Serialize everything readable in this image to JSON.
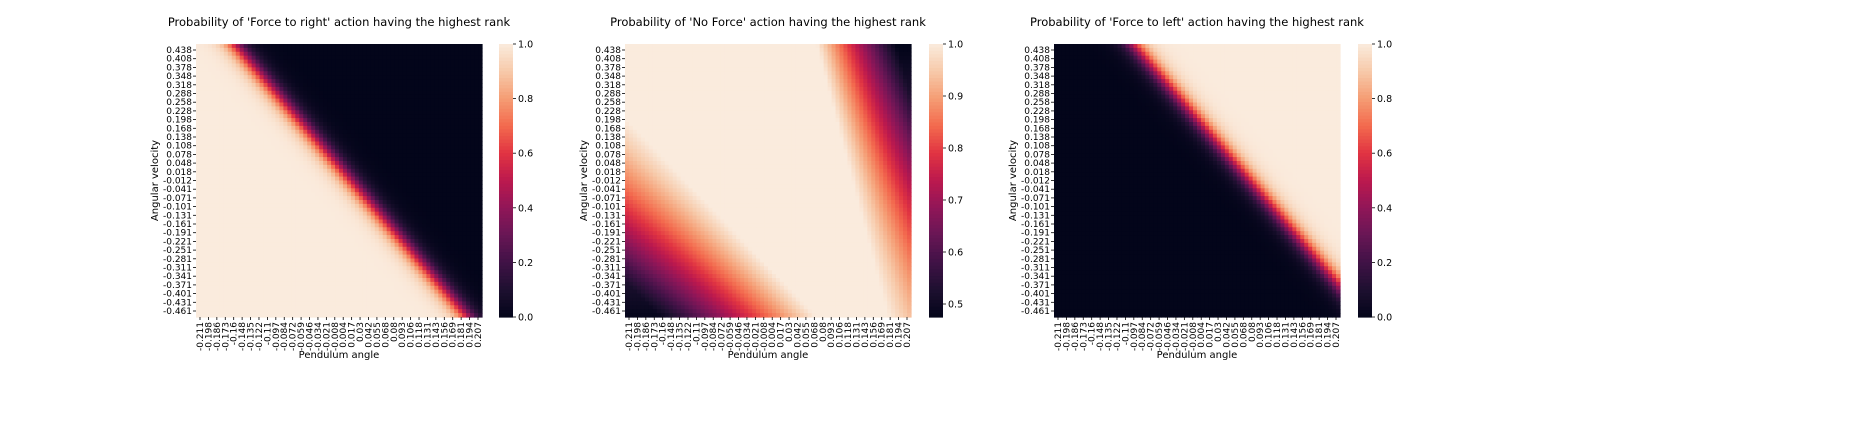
{
  "chart_data": [
    {
      "type": "heatmap",
      "title": "Probability of 'Force to right' action having the highest rank",
      "xlabel": "Pendulum angle",
      "ylabel": "Angular velocity",
      "x_ticks": [
        "-0.211",
        "-0.198",
        "-0.186",
        "-0.173",
        "-0.16",
        "-0.148",
        "-0.135",
        "-0.122",
        "-0.11",
        "-0.097",
        "-0.084",
        "-0.072",
        "-0.059",
        "-0.046",
        "-0.034",
        "-0.021",
        "-0.008",
        "0.004",
        "0.017",
        "0.03",
        "0.042",
        "0.055",
        "0.068",
        "0.08",
        "0.093",
        "0.106",
        "0.118",
        "0.131",
        "0.143",
        "0.156",
        "0.169",
        "0.181",
        "0.194",
        "0.207"
      ],
      "y_ticks": [
        "0.438",
        "0.408",
        "0.378",
        "0.348",
        "0.318",
        "0.288",
        "0.258",
        "0.228",
        "0.198",
        "0.168",
        "0.138",
        "0.108",
        "0.078",
        "0.048",
        "0.018",
        "-0.012",
        "-0.041",
        "-0.071",
        "-0.101",
        "-0.131",
        "-0.161",
        "-0.191",
        "-0.221",
        "-0.251",
        "-0.281",
        "-0.311",
        "-0.341",
        "-0.371",
        "-0.401",
        "-0.431",
        "-0.461"
      ],
      "colorbar": {
        "min": 0.0,
        "max": 1.0,
        "ticks": [
          "0.0",
          "0.2",
          "0.4",
          "0.6",
          "0.8",
          "1.0"
        ],
        "tick_values": [
          0.0,
          0.2,
          0.4,
          0.6,
          0.8,
          1.0
        ]
      },
      "pattern": "right",
      "colormap": "rocket",
      "grid": false
    },
    {
      "type": "heatmap",
      "title": "Probability of 'No Force' action having the highest rank",
      "xlabel": "Pendulum angle",
      "ylabel": "Angular velocity",
      "x_ticks": [
        "-0.211",
        "-0.198",
        "-0.186",
        "-0.173",
        "-0.16",
        "-0.148",
        "-0.135",
        "-0.122",
        "-0.11",
        "-0.097",
        "-0.084",
        "-0.072",
        "-0.059",
        "-0.046",
        "-0.034",
        "-0.021",
        "-0.008",
        "0.004",
        "0.017",
        "0.03",
        "0.042",
        "0.055",
        "0.068",
        "0.08",
        "0.093",
        "0.106",
        "0.118",
        "0.131",
        "0.143",
        "0.156",
        "0.169",
        "0.181",
        "0.194",
        "0.207"
      ],
      "y_ticks": [
        "0.438",
        "0.408",
        "0.378",
        "0.348",
        "0.318",
        "0.288",
        "0.258",
        "0.228",
        "0.198",
        "0.168",
        "0.138",
        "0.108",
        "0.078",
        "0.048",
        "0.018",
        "-0.012",
        "-0.041",
        "-0.071",
        "-0.101",
        "-0.131",
        "-0.161",
        "-0.191",
        "-0.221",
        "-0.251",
        "-0.281",
        "-0.311",
        "-0.341",
        "-0.371",
        "-0.401",
        "-0.431",
        "-0.461"
      ],
      "colorbar": {
        "min": 0.475,
        "max": 1.0,
        "ticks": [
          "0.5",
          "0.6",
          "0.7",
          "0.8",
          "0.9",
          "1.0"
        ],
        "tick_values": [
          0.5,
          0.6,
          0.7,
          0.8,
          0.9,
          1.0
        ]
      },
      "pattern": "none",
      "colormap": "rocket",
      "grid": false
    },
    {
      "type": "heatmap",
      "title": "Probability of 'Force to left' action having the highest rank",
      "xlabel": "Pendulum angle",
      "ylabel": "Angular velocity",
      "x_ticks": [
        "-0.211",
        "-0.198",
        "-0.186",
        "-0.173",
        "-0.16",
        "-0.148",
        "-0.135",
        "-0.122",
        "-0.11",
        "-0.097",
        "-0.084",
        "-0.072",
        "-0.059",
        "-0.046",
        "-0.034",
        "-0.021",
        "-0.008",
        "0.004",
        "0.017",
        "0.03",
        "0.042",
        "0.055",
        "0.068",
        "0.08",
        "0.093",
        "0.106",
        "0.118",
        "0.131",
        "0.143",
        "0.156",
        "0.169",
        "0.181",
        "0.194",
        "0.207"
      ],
      "y_ticks": [
        "0.438",
        "0.408",
        "0.378",
        "0.348",
        "0.318",
        "0.288",
        "0.258",
        "0.228",
        "0.198",
        "0.168",
        "0.138",
        "0.108",
        "0.078",
        "0.048",
        "0.018",
        "-0.012",
        "-0.041",
        "-0.071",
        "-0.101",
        "-0.131",
        "-0.161",
        "-0.191",
        "-0.221",
        "-0.251",
        "-0.281",
        "-0.311",
        "-0.341",
        "-0.371",
        "-0.401",
        "-0.431",
        "-0.461"
      ],
      "colorbar": {
        "min": 0.0,
        "max": 1.0,
        "ticks": [
          "0.0",
          "0.2",
          "0.4",
          "0.6",
          "0.8",
          "1.0"
        ],
        "tick_values": [
          0.0,
          0.2,
          0.4,
          0.6,
          0.8,
          1.0
        ]
      },
      "pattern": "left",
      "colormap": "rocket",
      "grid": false
    }
  ]
}
